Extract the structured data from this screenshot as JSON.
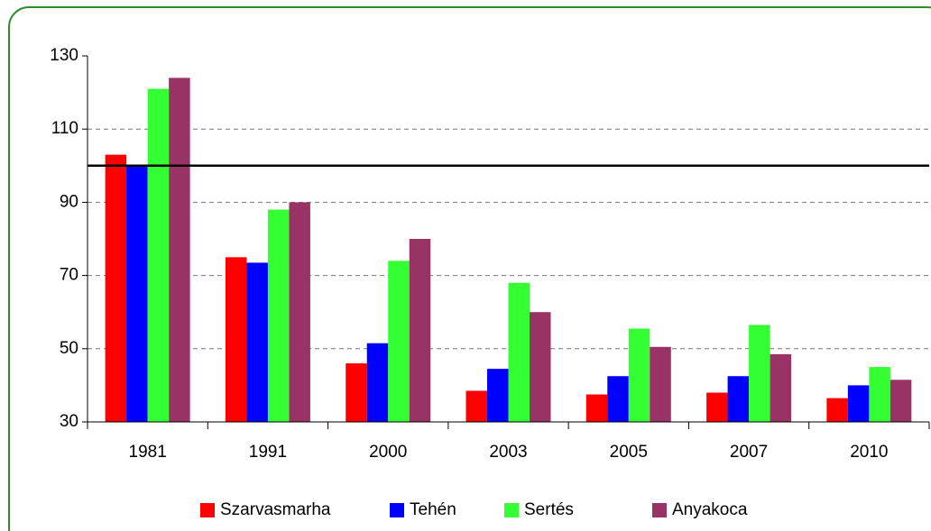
{
  "chart_data": {
    "type": "bar",
    "categories": [
      "1981",
      "1991",
      "2000",
      "2003",
      "2005",
      "2007",
      "2010"
    ],
    "series": [
      {
        "name": "Szarvasmarha",
        "color": "#ff0000",
        "values": [
          103,
          75,
          46,
          38.5,
          37.5,
          38,
          36.5
        ]
      },
      {
        "name": "Tehén",
        "color": "#0000ff",
        "values": [
          100,
          73.5,
          51.5,
          44.5,
          42.5,
          42.5,
          40
        ]
      },
      {
        "name": "Sertés",
        "color": "#33ff33",
        "values": [
          121,
          88,
          74,
          68,
          55.5,
          56.5,
          45
        ]
      },
      {
        "name": "Anyakoca",
        "color": "#993366",
        "values": [
          124,
          90,
          80,
          60,
          50.5,
          48.5,
          41.5
        ]
      }
    ],
    "ylim": [
      30,
      130
    ],
    "yticks": [
      30,
      50,
      70,
      90,
      110,
      130
    ],
    "grid": true,
    "reference_line": 100,
    "legend": "bottom"
  }
}
